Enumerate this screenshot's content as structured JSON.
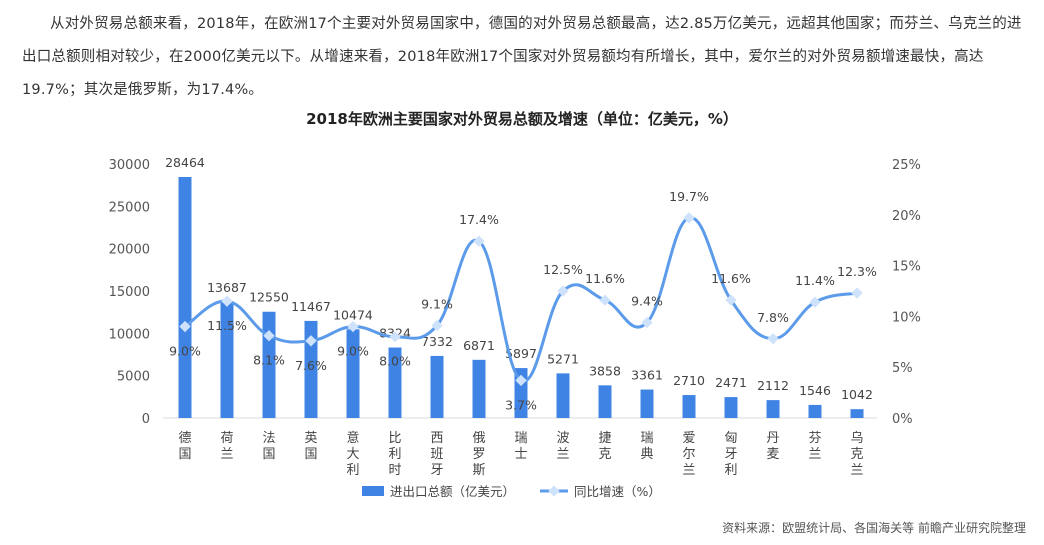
{
  "paragraph": "从对外贸易总额来看，2018年，在欧洲17个主要对外贸易国家中，德国的对外贸易总额最高，达2.85万亿美元，远超其他国家；而芬兰、乌克兰的进出口总额则相对较少，在2000亿美元以下。从增速来看，2018年欧洲17个国家对外贸易额均有所增长，其中，爱尔兰的对外贸易额增速最快，高达19.7%；其次是俄罗斯，为17.4%。",
  "source": "资料来源：欧盟统计局、各国海关等 前瞻产业研究院整理",
  "chart_data": {
    "type": "bar+line",
    "title": "2018年欧洲主要国家对外贸易总额及增速（单位：亿美元，%）",
    "categories": [
      "德国",
      "荷兰",
      "法国",
      "英国",
      "意大利",
      "比利时",
      "西班牙",
      "俄罗斯",
      "瑞士",
      "波兰",
      "捷克",
      "瑞典",
      "爱尔兰",
      "匈牙利",
      "丹麦",
      "芬兰",
      "乌克兰"
    ],
    "series": [
      {
        "name": "进出口总额（亿美元）",
        "type": "bar",
        "axis": "left",
        "color": "#3f84e5",
        "values": [
          28464,
          13687,
          12550,
          11467,
          10474,
          8324,
          7332,
          6871,
          5897,
          5271,
          3858,
          3361,
          2710,
          2471,
          2112,
          1546,
          1042
        ]
      },
      {
        "name": "同比增速（%）",
        "type": "line",
        "axis": "right",
        "color": "#5b9bea",
        "marker_color": "#cfe2fb",
        "values": [
          9.0,
          11.5,
          8.1,
          7.6,
          9.0,
          8.0,
          9.1,
          17.4,
          3.7,
          12.5,
          11.6,
          9.4,
          19.7,
          11.6,
          7.8,
          11.4,
          12.3
        ]
      }
    ],
    "left_axis": {
      "min": 0,
      "max": 30000,
      "ticks": [
        "0",
        "5000",
        "10000",
        "15000",
        "20000",
        "25000",
        "30000"
      ]
    },
    "right_axis": {
      "min": 0,
      "max": 25,
      "ticks": [
        "0%",
        "5%",
        "10%",
        "15%",
        "20%",
        "25%"
      ]
    },
    "legend": "bottom",
    "grid": false
  }
}
